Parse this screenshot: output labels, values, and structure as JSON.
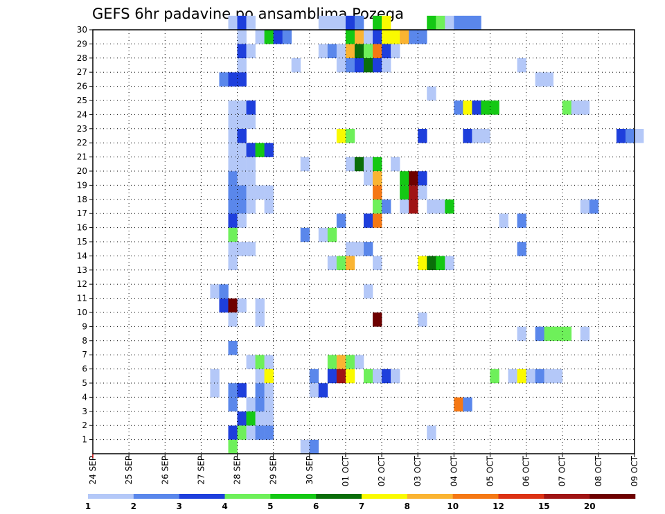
{
  "chart_data": {
    "type": "heatmap",
    "title": "GEFS 6hr padavine po ansamblima Pozega",
    "xlabel": "",
    "ylabel": "",
    "x_ticks": [
      "24 SEP",
      "25 SEP",
      "26 SEP",
      "27 SEP",
      "28 SEP",
      "29 SEP",
      "30 SEP",
      "01 OCT",
      "02 OCT",
      "03 OCT",
      "04 OCT",
      "05 OCT",
      "06 OCT",
      "07 OCT",
      "08 OCT",
      "09 OCT"
    ],
    "y_ticks": [
      "1",
      "2",
      "3",
      "4",
      "5",
      "6",
      "7",
      "8",
      "9",
      "10",
      "11",
      "12",
      "13",
      "14",
      "15",
      "16",
      "17",
      "18",
      "19",
      "20",
      "21",
      "22",
      "23",
      "24",
      "25",
      "26",
      "27",
      "28",
      "29",
      "30"
    ],
    "x_unit": "6-hour steps from 24 SEP 00Z",
    "y_unit": "ensemble member",
    "colorbar": {
      "labels": [
        "1",
        "2",
        "3",
        "4",
        "5",
        "6",
        "7",
        "8",
        "10",
        "12",
        "15",
        "20"
      ],
      "colors": [
        "#b4c8f8",
        "#5a87eb",
        "#1e3fdc",
        "#6ef05a",
        "#14c814",
        "#0a6e0a",
        "#fafa00",
        "#fab432",
        "#f57814",
        "#dc3214",
        "#a01414",
        "#6e0000"
      ]
    },
    "grid": true,
    "cells": [
      {
        "m": 30,
        "t": 15,
        "v": 1
      },
      {
        "m": 30,
        "t": 16,
        "v": 3
      },
      {
        "m": 30,
        "t": 17,
        "v": 1
      },
      {
        "m": 30,
        "t": 25,
        "v": 1
      },
      {
        "m": 30,
        "t": 26,
        "v": 1
      },
      {
        "m": 30,
        "t": 27,
        "v": 1
      },
      {
        "m": 30,
        "t": 28,
        "v": 3
      },
      {
        "m": 30,
        "t": 29,
        "v": 2
      },
      {
        "m": 30,
        "t": 31,
        "v": 5
      },
      {
        "m": 30,
        "t": 32,
        "v": 7
      },
      {
        "m": 30,
        "t": 37,
        "v": 5
      },
      {
        "m": 30,
        "t": 38,
        "v": 4
      },
      {
        "m": 30,
        "t": 39,
        "v": 1
      },
      {
        "m": 30,
        "t": 40,
        "v": 2
      },
      {
        "m": 30,
        "t": 41,
        "v": 2
      },
      {
        "m": 30,
        "t": 42,
        "v": 2
      },
      {
        "m": 29,
        "t": 16,
        "v": 1
      },
      {
        "m": 29,
        "t": 18,
        "v": 1
      },
      {
        "m": 29,
        "t": 19,
        "v": 5
      },
      {
        "m": 29,
        "t": 20,
        "v": 3
      },
      {
        "m": 29,
        "t": 21,
        "v": 2
      },
      {
        "m": 29,
        "t": 28,
        "v": 5
      },
      {
        "m": 29,
        "t": 29,
        "v": 8
      },
      {
        "m": 29,
        "t": 30,
        "v": 1
      },
      {
        "m": 29,
        "t": 31,
        "v": 3
      },
      {
        "m": 29,
        "t": 32,
        "v": 7
      },
      {
        "m": 29,
        "t": 33,
        "v": 7
      },
      {
        "m": 29,
        "t": 34,
        "v": 8
      },
      {
        "m": 29,
        "t": 35,
        "v": 2
      },
      {
        "m": 29,
        "t": 36,
        "v": 2
      },
      {
        "m": 28,
        "t": 16,
        "v": 3
      },
      {
        "m": 28,
        "t": 17,
        "v": 1
      },
      {
        "m": 28,
        "t": 25,
        "v": 1
      },
      {
        "m": 28,
        "t": 26,
        "v": 2
      },
      {
        "m": 28,
        "t": 27,
        "v": 1
      },
      {
        "m": 28,
        "t": 28,
        "v": 8
      },
      {
        "m": 28,
        "t": 29,
        "v": 6
      },
      {
        "m": 28,
        "t": 30,
        "v": 4
      },
      {
        "m": 28,
        "t": 31,
        "v": 10
      },
      {
        "m": 28,
        "t": 32,
        "v": 3
      },
      {
        "m": 28,
        "t": 33,
        "v": 1
      },
      {
        "m": 27,
        "t": 16,
        "v": 1
      },
      {
        "m": 27,
        "t": 22,
        "v": 1
      },
      {
        "m": 27,
        "t": 27,
        "v": 1
      },
      {
        "m": 27,
        "t": 28,
        "v": 2
      },
      {
        "m": 27,
        "t": 29,
        "v": 3
      },
      {
        "m": 27,
        "t": 30,
        "v": 6
      },
      {
        "m": 27,
        "t": 31,
        "v": 3
      },
      {
        "m": 27,
        "t": 32,
        "v": 1
      },
      {
        "m": 27,
        "t": 47,
        "v": 1
      },
      {
        "m": 26,
        "t": 14,
        "v": 2
      },
      {
        "m": 26,
        "t": 15,
        "v": 3
      },
      {
        "m": 26,
        "t": 16,
        "v": 3
      },
      {
        "m": 26,
        "t": 49,
        "v": 1
      },
      {
        "m": 26,
        "t": 50,
        "v": 1
      },
      {
        "m": 25,
        "t": 37,
        "v": 1
      },
      {
        "m": 24,
        "t": 15,
        "v": 1
      },
      {
        "m": 24,
        "t": 16,
        "v": 1
      },
      {
        "m": 24,
        "t": 17,
        "v": 3
      },
      {
        "m": 24,
        "t": 40,
        "v": 2
      },
      {
        "m": 24,
        "t": 41,
        "v": 7
      },
      {
        "m": 24,
        "t": 42,
        "v": 3
      },
      {
        "m": 24,
        "t": 43,
        "v": 5
      },
      {
        "m": 24,
        "t": 44,
        "v": 5
      },
      {
        "m": 24,
        "t": 52,
        "v": 4
      },
      {
        "m": 24,
        "t": 53,
        "v": 1
      },
      {
        "m": 24,
        "t": 54,
        "v": 1
      },
      {
        "m": 23,
        "t": 15,
        "v": 1
      },
      {
        "m": 23,
        "t": 16,
        "v": 1
      },
      {
        "m": 23,
        "t": 17,
        "v": 1
      },
      {
        "m": 22,
        "t": 15,
        "v": 1
      },
      {
        "m": 22,
        "t": 16,
        "v": 3
      },
      {
        "m": 22,
        "t": 27,
        "v": 7
      },
      {
        "m": 22,
        "t": 28,
        "v": 4
      },
      {
        "m": 22,
        "t": 36,
        "v": 3
      },
      {
        "m": 22,
        "t": 41,
        "v": 3
      },
      {
        "m": 22,
        "t": 42,
        "v": 1
      },
      {
        "m": 22,
        "t": 43,
        "v": 1
      },
      {
        "m": 22,
        "t": 58,
        "v": 3
      },
      {
        "m": 22,
        "t": 59,
        "v": 2
      },
      {
        "m": 22,
        "t": 60,
        "v": 1
      },
      {
        "m": 21,
        "t": 15,
        "v": 1
      },
      {
        "m": 21,
        "t": 16,
        "v": 1
      },
      {
        "m": 21,
        "t": 17,
        "v": 3
      },
      {
        "m": 21,
        "t": 18,
        "v": 5
      },
      {
        "m": 21,
        "t": 19,
        "v": 3
      },
      {
        "m": 20,
        "t": 15,
        "v": 1
      },
      {
        "m": 20,
        "t": 16,
        "v": 1
      },
      {
        "m": 20,
        "t": 17,
        "v": 1
      },
      {
        "m": 20,
        "t": 23,
        "v": 1
      },
      {
        "m": 20,
        "t": 28,
        "v": 1
      },
      {
        "m": 20,
        "t": 29,
        "v": 6
      },
      {
        "m": 20,
        "t": 30,
        "v": 1
      },
      {
        "m": 20,
        "t": 31,
        "v": 5
      },
      {
        "m": 20,
        "t": 33,
        "v": 1
      },
      {
        "m": 19,
        "t": 15,
        "v": 2
      },
      {
        "m": 19,
        "t": 16,
        "v": 1
      },
      {
        "m": 19,
        "t": 17,
        "v": 1
      },
      {
        "m": 19,
        "t": 30,
        "v": 1
      },
      {
        "m": 19,
        "t": 31,
        "v": 8
      },
      {
        "m": 19,
        "t": 34,
        "v": 5
      },
      {
        "m": 19,
        "t": 35,
        "v": 20
      },
      {
        "m": 19,
        "t": 36,
        "v": 3
      },
      {
        "m": 18,
        "t": 15,
        "v": 2
      },
      {
        "m": 18,
        "t": 16,
        "v": 2
      },
      {
        "m": 18,
        "t": 17,
        "v": 1
      },
      {
        "m": 18,
        "t": 18,
        "v": 1
      },
      {
        "m": 18,
        "t": 19,
        "v": 1
      },
      {
        "m": 18,
        "t": 31,
        "v": 10
      },
      {
        "m": 18,
        "t": 34,
        "v": 5
      },
      {
        "m": 18,
        "t": 35,
        "v": 15
      },
      {
        "m": 18,
        "t": 36,
        "v": 1
      },
      {
        "m": 17,
        "t": 15,
        "v": 2
      },
      {
        "m": 17,
        "t": 16,
        "v": 2
      },
      {
        "m": 17,
        "t": 17,
        "v": 1
      },
      {
        "m": 17,
        "t": 19,
        "v": 1
      },
      {
        "m": 17,
        "t": 31,
        "v": 4
      },
      {
        "m": 17,
        "t": 32,
        "v": 2
      },
      {
        "m": 17,
        "t": 34,
        "v": 1
      },
      {
        "m": 17,
        "t": 35,
        "v": 15
      },
      {
        "m": 17,
        "t": 37,
        "v": 1
      },
      {
        "m": 17,
        "t": 38,
        "v": 1
      },
      {
        "m": 17,
        "t": 39,
        "v": 5
      },
      {
        "m": 17,
        "t": 54,
        "v": 1
      },
      {
        "m": 17,
        "t": 55,
        "v": 2
      },
      {
        "m": 16,
        "t": 15,
        "v": 3
      },
      {
        "m": 16,
        "t": 16,
        "v": 1
      },
      {
        "m": 16,
        "t": 27,
        "v": 2
      },
      {
        "m": 16,
        "t": 30,
        "v": 3
      },
      {
        "m": 16,
        "t": 31,
        "v": 10
      },
      {
        "m": 16,
        "t": 45,
        "v": 1
      },
      {
        "m": 16,
        "t": 47,
        "v": 2
      },
      {
        "m": 15,
        "t": 15,
        "v": 4
      },
      {
        "m": 15,
        "t": 23,
        "v": 2
      },
      {
        "m": 15,
        "t": 25,
        "v": 1
      },
      {
        "m": 15,
        "t": 26,
        "v": 4
      },
      {
        "m": 14,
        "t": 15,
        "v": 1
      },
      {
        "m": 14,
        "t": 16,
        "v": 1
      },
      {
        "m": 14,
        "t": 17,
        "v": 1
      },
      {
        "m": 14,
        "t": 28,
        "v": 1
      },
      {
        "m": 14,
        "t": 29,
        "v": 1
      },
      {
        "m": 14,
        "t": 30,
        "v": 2
      },
      {
        "m": 14,
        "t": 47,
        "v": 2
      },
      {
        "m": 13,
        "t": 15,
        "v": 1
      },
      {
        "m": 13,
        "t": 26,
        "v": 1
      },
      {
        "m": 13,
        "t": 27,
        "v": 4
      },
      {
        "m": 13,
        "t": 28,
        "v": 8
      },
      {
        "m": 13,
        "t": 31,
        "v": 1
      },
      {
        "m": 13,
        "t": 36,
        "v": 7
      },
      {
        "m": 13,
        "t": 37,
        "v": 6
      },
      {
        "m": 13,
        "t": 38,
        "v": 5
      },
      {
        "m": 13,
        "t": 39,
        "v": 1
      },
      {
        "m": 11,
        "t": 13,
        "v": 1
      },
      {
        "m": 11,
        "t": 14,
        "v": 2
      },
      {
        "m": 11,
        "t": 30,
        "v": 1
      },
      {
        "m": 10,
        "t": 14,
        "v": 3
      },
      {
        "m": 10,
        "t": 15,
        "v": 20
      },
      {
        "m": 10,
        "t": 16,
        "v": 1
      },
      {
        "m": 10,
        "t": 18,
        "v": 1
      },
      {
        "m": 9,
        "t": 15,
        "v": 1
      },
      {
        "m": 9,
        "t": 18,
        "v": 1
      },
      {
        "m": 9,
        "t": 31,
        "v": 20
      },
      {
        "m": 9,
        "t": 36,
        "v": 1
      },
      {
        "m": 8,
        "t": 47,
        "v": 1
      },
      {
        "m": 8,
        "t": 49,
        "v": 2
      },
      {
        "m": 8,
        "t": 50,
        "v": 4
      },
      {
        "m": 8,
        "t": 51,
        "v": 4
      },
      {
        "m": 8,
        "t": 52,
        "v": 4
      },
      {
        "m": 8,
        "t": 54,
        "v": 1
      },
      {
        "m": 7,
        "t": 15,
        "v": 2
      },
      {
        "m": 6,
        "t": 17,
        "v": 1
      },
      {
        "m": 6,
        "t": 18,
        "v": 4
      },
      {
        "m": 6,
        "t": 19,
        "v": 1
      },
      {
        "m": 6,
        "t": 26,
        "v": 4
      },
      {
        "m": 6,
        "t": 27,
        "v": 8
      },
      {
        "m": 6,
        "t": 28,
        "v": 4
      },
      {
        "m": 6,
        "t": 29,
        "v": 1
      },
      {
        "m": 5,
        "t": 13,
        "v": 1
      },
      {
        "m": 5,
        "t": 18,
        "v": 1
      },
      {
        "m": 5,
        "t": 19,
        "v": 7
      },
      {
        "m": 5,
        "t": 24,
        "v": 2
      },
      {
        "m": 5,
        "t": 26,
        "v": 3
      },
      {
        "m": 5,
        "t": 27,
        "v": 15
      },
      {
        "m": 5,
        "t": 28,
        "v": 7
      },
      {
        "m": 5,
        "t": 30,
        "v": 4
      },
      {
        "m": 5,
        "t": 31,
        "v": 1
      },
      {
        "m": 5,
        "t": 32,
        "v": 3
      },
      {
        "m": 5,
        "t": 33,
        "v": 1
      },
      {
        "m": 5,
        "t": 44,
        "v": 4
      },
      {
        "m": 5,
        "t": 46,
        "v": 1
      },
      {
        "m": 5,
        "t": 47,
        "v": 7
      },
      {
        "m": 5,
        "t": 48,
        "v": 1
      },
      {
        "m": 5,
        "t": 49,
        "v": 2
      },
      {
        "m": 5,
        "t": 50,
        "v": 1
      },
      {
        "m": 5,
        "t": 51,
        "v": 1
      },
      {
        "m": 4,
        "t": 13,
        "v": 1
      },
      {
        "m": 4,
        "t": 15,
        "v": 2
      },
      {
        "m": 4,
        "t": 16,
        "v": 3
      },
      {
        "m": 4,
        "t": 18,
        "v": 2
      },
      {
        "m": 4,
        "t": 19,
        "v": 1
      },
      {
        "m": 4,
        "t": 24,
        "v": 1
      },
      {
        "m": 4,
        "t": 25,
        "v": 3
      },
      {
        "m": 3,
        "t": 15,
        "v": 2
      },
      {
        "m": 3,
        "t": 17,
        "v": 1
      },
      {
        "m": 3,
        "t": 18,
        "v": 2
      },
      {
        "m": 3,
        "t": 19,
        "v": 1
      },
      {
        "m": 3,
        "t": 40,
        "v": 10
      },
      {
        "m": 3,
        "t": 41,
        "v": 2
      },
      {
        "m": 2,
        "t": 16,
        "v": 3
      },
      {
        "m": 2,
        "t": 17,
        "v": 5
      },
      {
        "m": 2,
        "t": 18,
        "v": 1
      },
      {
        "m": 2,
        "t": 19,
        "v": 1
      },
      {
        "m": 1,
        "t": 15,
        "v": 3
      },
      {
        "m": 1,
        "t": 16,
        "v": 4
      },
      {
        "m": 1,
        "t": 17,
        "v": 1
      },
      {
        "m": 1,
        "t": 18,
        "v": 2
      },
      {
        "m": 1,
        "t": 19,
        "v": 2
      },
      {
        "m": 1,
        "t": 37,
        "v": 1
      },
      {
        "m": 0,
        "t": 15,
        "v": 4
      },
      {
        "m": 0,
        "t": 23,
        "v": 1
      },
      {
        "m": 0,
        "t": 24,
        "v": 2
      }
    ]
  }
}
